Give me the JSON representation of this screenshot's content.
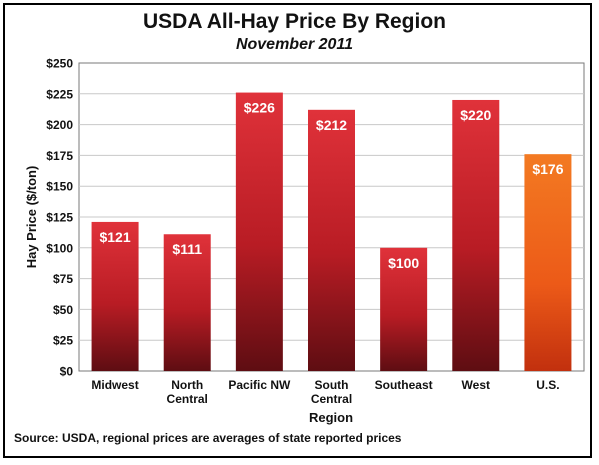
{
  "chart_data": {
    "type": "bar",
    "title": "USDA All-Hay Price By Region",
    "subtitle": "November 2011",
    "xlabel": "Region",
    "ylabel": "Hay Price ($/ton)",
    "categories": [
      "Midwest",
      "North Central",
      "Pacific NW",
      "South Central",
      "Southeast",
      "West",
      "U.S."
    ],
    "category_lines": [
      [
        "Midwest"
      ],
      [
        "North",
        "Central"
      ],
      [
        "Pacific NW"
      ],
      [
        "South",
        "Central"
      ],
      [
        "Southeast"
      ],
      [
        "West"
      ],
      [
        "U.S."
      ]
    ],
    "values": [
      121,
      111,
      226,
      212,
      100,
      220,
      176
    ],
    "data_labels": [
      "$121",
      "$111",
      "$226",
      "$212",
      "$100",
      "$220",
      "$176"
    ],
    "yticks": [
      "$0",
      "$25",
      "$50",
      "$75",
      "$100",
      "$125",
      "$150",
      "$175",
      "$200",
      "$225",
      "$250"
    ],
    "ylim": [
      0,
      250
    ],
    "grid": true,
    "colors": {
      "regional_bar": "#c8202a",
      "us_bar": "#f06a1c",
      "grid": "#c8c8c8"
    }
  },
  "source": "Source: USDA, regional prices are averages of state reported prices"
}
